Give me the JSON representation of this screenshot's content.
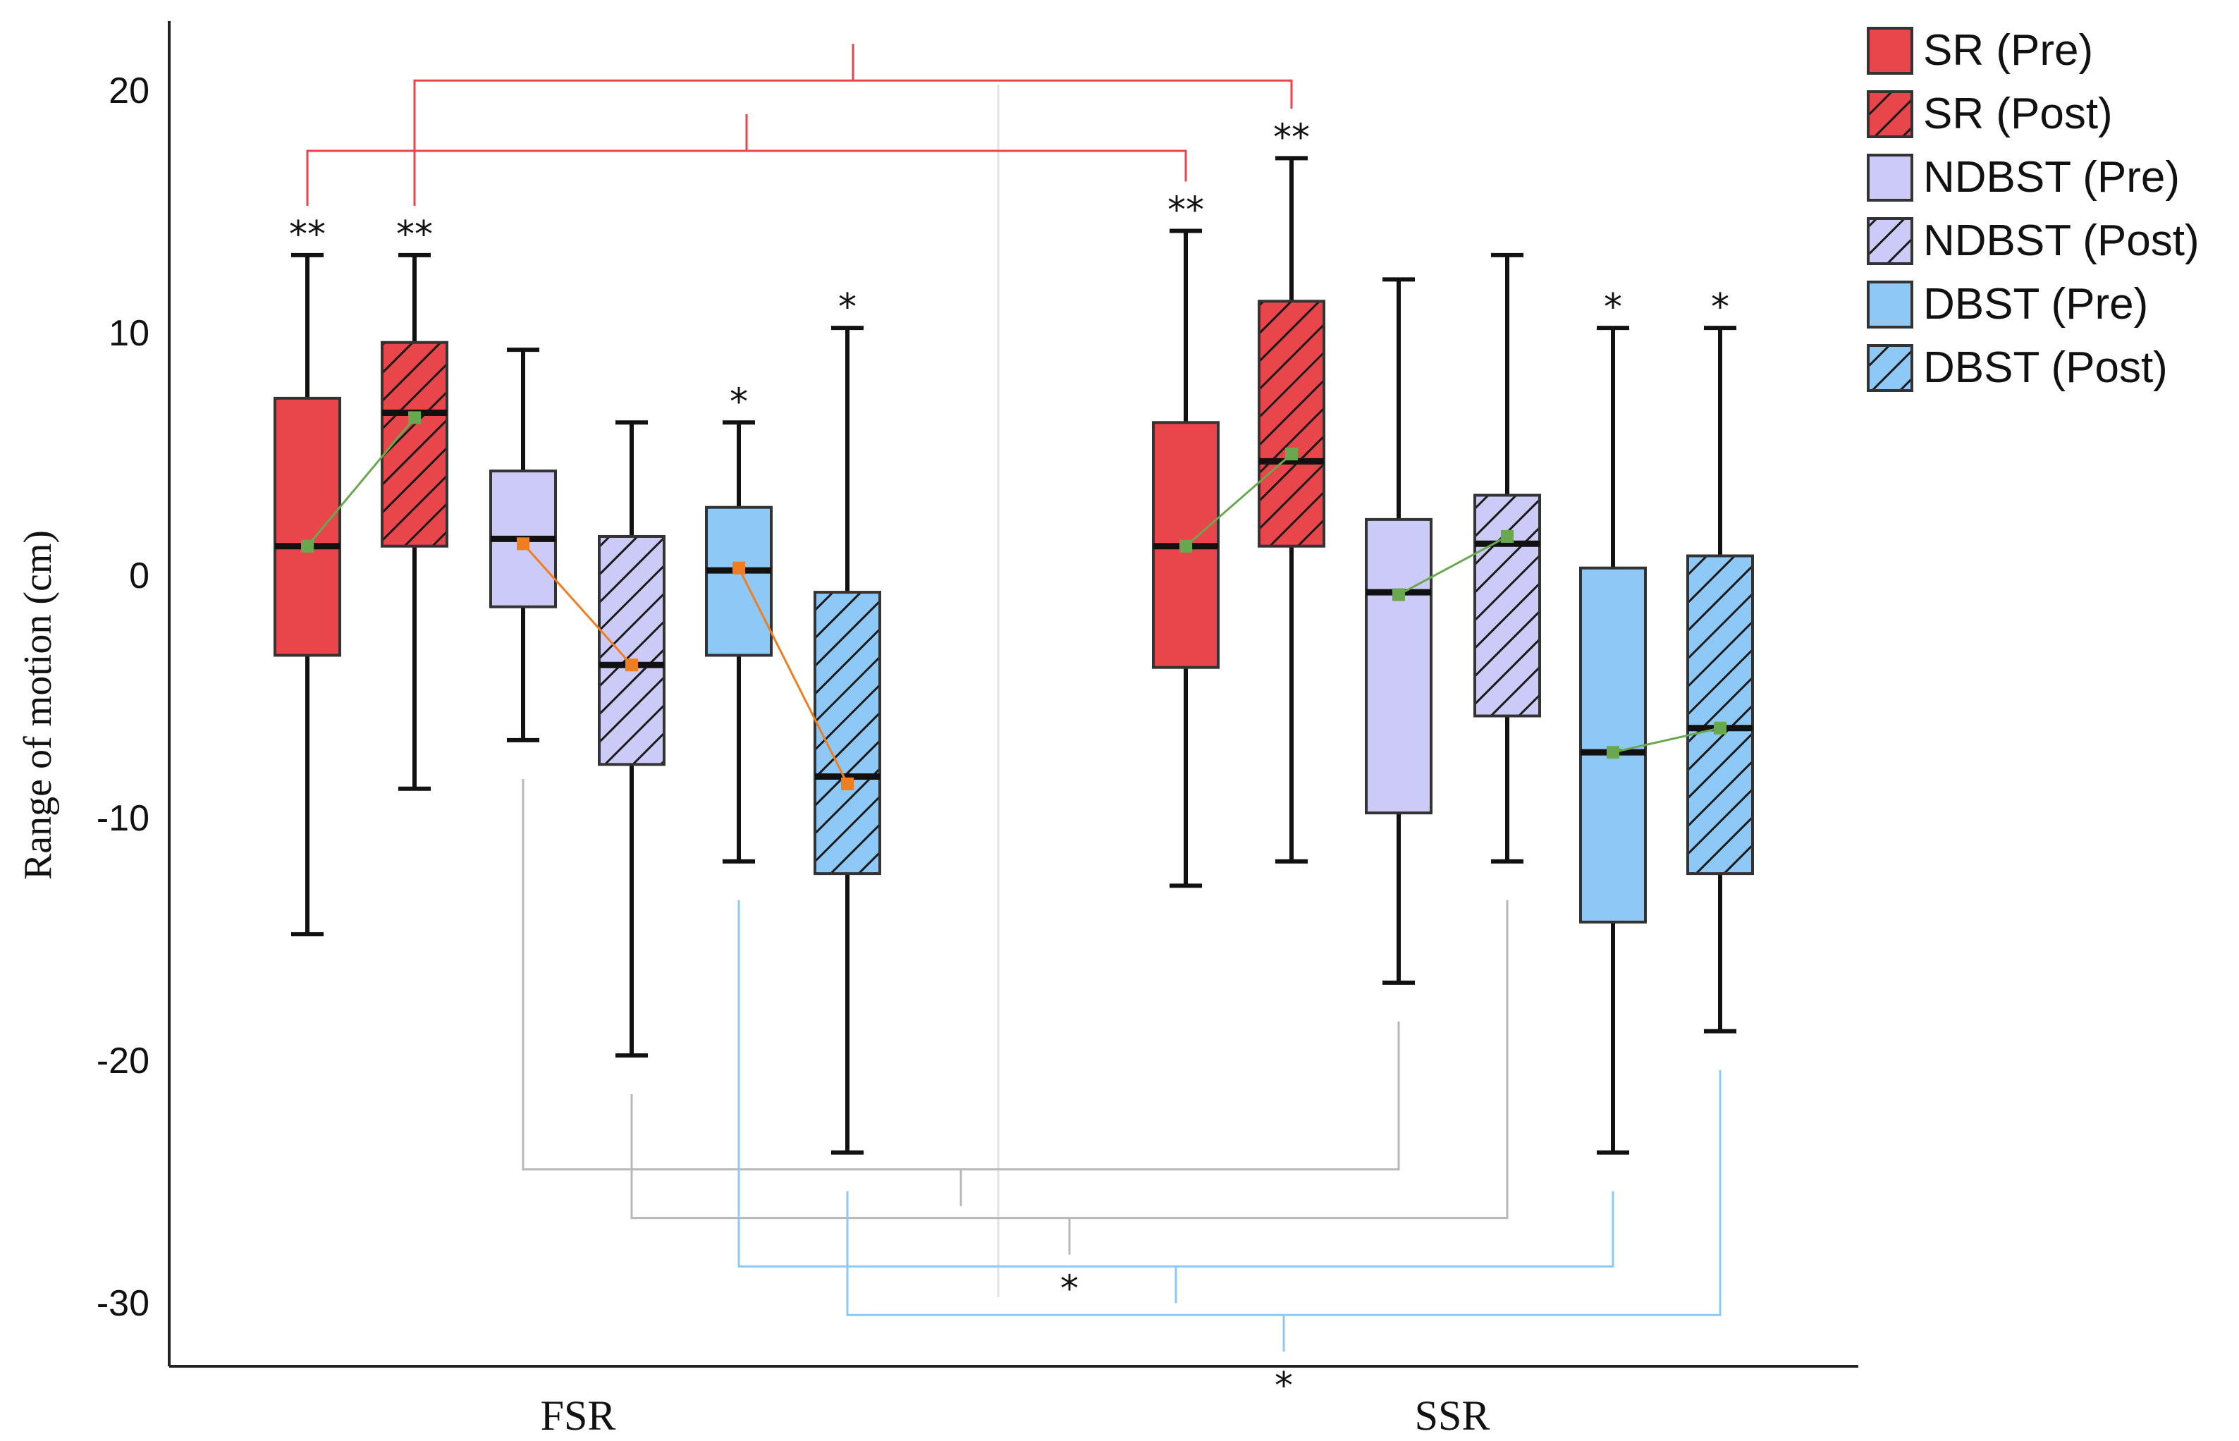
{
  "chart_data": {
    "type": "box",
    "ylabel": "Range of motion (cm)",
    "xlabel": "",
    "ylim": [
      -32,
      23
    ],
    "yticks": [
      20,
      10,
      0,
      -10,
      -20,
      -30
    ],
    "categories": [
      "FSR",
      "SSR"
    ],
    "colors": {
      "sr": "#e8464b",
      "ndbst": "#cccbf7",
      "dbst": "#8ec8f6",
      "mean_green": "#6aa84f",
      "mean_orange": "#f07d1f",
      "bracket_red": "#e8464b",
      "bracket_gray": "#b7b7b7",
      "bracket_blue": "#8ec8f6"
    },
    "legend": [
      {
        "label": "SR (Pre)",
        "color": "#e8464b",
        "hatched": false
      },
      {
        "label": "SR (Post)",
        "color": "#e8464b",
        "hatched": true
      },
      {
        "label": "NDBST (Pre)",
        "color": "#cccbf7",
        "hatched": false
      },
      {
        "label": "NDBST (Post)",
        "color": "#cccbf7",
        "hatched": true
      },
      {
        "label": "DBST (Pre)",
        "color": "#8ec8f6",
        "hatched": false
      },
      {
        "label": "DBST (Post)",
        "color": "#8ec8f6",
        "hatched": true
      }
    ],
    "series": [
      {
        "name": "SR (Pre)",
        "group": "FSR",
        "min": -14.8,
        "q1": -3.3,
        "median": 1.2,
        "q3": 7.3,
        "max": 13.2,
        "mean": 1.2,
        "significance": "**",
        "color": "#e8464b",
        "hatched": false
      },
      {
        "name": "SR (Post)",
        "group": "FSR",
        "min": -8.8,
        "q1": 1.2,
        "median": 6.7,
        "q3": 9.6,
        "max": 13.2,
        "mean": 6.5,
        "significance": "**",
        "color": "#e8464b",
        "hatched": true
      },
      {
        "name": "NDBST (Pre)",
        "group": "FSR",
        "min": -6.8,
        "q1": -1.3,
        "median": 1.5,
        "q3": 4.3,
        "max": 9.3,
        "mean": 1.3,
        "significance": "",
        "color": "#cccbf7",
        "hatched": false
      },
      {
        "name": "NDBST (Post)",
        "group": "FSR",
        "min": -19.8,
        "q1": -7.8,
        "median": -3.7,
        "q3": 1.6,
        "max": 6.3,
        "mean": -3.7,
        "significance": "",
        "color": "#cccbf7",
        "hatched": true
      },
      {
        "name": "DBST (Pre)",
        "group": "FSR",
        "min": -11.8,
        "q1": -3.3,
        "median": 0.2,
        "q3": 2.8,
        "max": 6.3,
        "mean": 0.3,
        "significance": "*",
        "color": "#8ec8f6",
        "hatched": false
      },
      {
        "name": "DBST (Post)",
        "group": "FSR",
        "min": -23.8,
        "q1": -12.3,
        "median": -8.3,
        "q3": -0.7,
        "max": 10.2,
        "mean": -8.6,
        "significance": "*",
        "color": "#8ec8f6",
        "hatched": true
      },
      {
        "name": "SR (Pre)",
        "group": "SSR",
        "min": -12.8,
        "q1": -3.8,
        "median": 1.2,
        "q3": 6.3,
        "max": 14.2,
        "mean": 1.2,
        "significance": "**",
        "color": "#e8464b",
        "hatched": false
      },
      {
        "name": "SR (Post)",
        "group": "SSR",
        "min": -11.8,
        "q1": 1.2,
        "median": 4.7,
        "q3": 11.3,
        "max": 17.2,
        "mean": 5.0,
        "significance": "**",
        "color": "#e8464b",
        "hatched": true
      },
      {
        "name": "NDBST (Pre)",
        "group": "SSR",
        "min": -16.8,
        "q1": -9.8,
        "median": -0.7,
        "q3": 2.3,
        "max": 12.2,
        "mean": -0.8,
        "significance": "",
        "color": "#cccbf7",
        "hatched": false
      },
      {
        "name": "NDBST (Post)",
        "group": "SSR",
        "min": -11.8,
        "q1": -5.8,
        "median": 1.3,
        "q3": 3.3,
        "max": 13.2,
        "mean": 1.6,
        "significance": "",
        "color": "#cccbf7",
        "hatched": true
      },
      {
        "name": "DBST (Pre)",
        "group": "SSR",
        "min": -23.8,
        "q1": -14.3,
        "median": -7.3,
        "q3": 0.3,
        "max": 10.2,
        "mean": -7.3,
        "significance": "*",
        "color": "#8ec8f6",
        "hatched": false
      },
      {
        "name": "DBST (Post)",
        "group": "SSR",
        "min": -18.8,
        "q1": -12.3,
        "median": -6.3,
        "q3": 0.8,
        "max": 10.2,
        "mean": -6.3,
        "significance": "*",
        "color": "#8ec8f6",
        "hatched": true
      }
    ],
    "mean_links": [
      {
        "from": 0,
        "to": 1,
        "color": "#6aa84f"
      },
      {
        "from": 2,
        "to": 3,
        "color": "#f07d1f"
      },
      {
        "from": 4,
        "to": 5,
        "color": "#f07d1f"
      },
      {
        "from": 6,
        "to": 7,
        "color": "#6aa84f"
      },
      {
        "from": 8,
        "to": 9,
        "color": "#6aa84f"
      },
      {
        "from": 10,
        "to": 11,
        "color": "#6aa84f"
      }
    ],
    "comparisons": [
      {
        "from": 1,
        "to": 7,
        "y": 20.4,
        "color": "#e8464b",
        "label": "",
        "direction": "up"
      },
      {
        "from": 0,
        "to": 6,
        "y": 17.5,
        "color": "#e8464b",
        "label": "",
        "direction": "up"
      },
      {
        "from": 2,
        "to": 8,
        "y": -24.5,
        "color": "#b7b7b7",
        "label": "",
        "direction": "down"
      },
      {
        "from": 3,
        "to": 9,
        "y": -26.5,
        "color": "#b7b7b7",
        "label": "*",
        "direction": "down"
      },
      {
        "from": 4,
        "to": 10,
        "y": -28.5,
        "color": "#8ec8f6",
        "label": "",
        "direction": "down"
      },
      {
        "from": 5,
        "to": 11,
        "y": -30.5,
        "color": "#8ec8f6",
        "label": "*",
        "direction": "down"
      }
    ]
  }
}
